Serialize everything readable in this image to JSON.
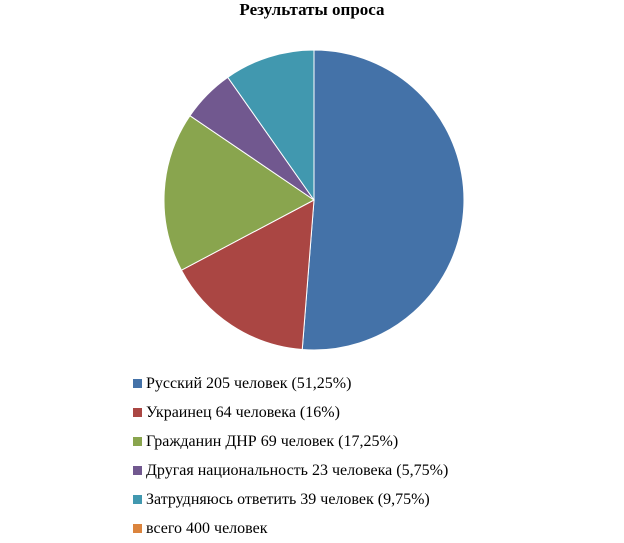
{
  "chart_data": {
    "type": "pie",
    "title": "Результаты опроса",
    "slices": [
      {
        "label": "Русский 205 человек (51,25%)",
        "value": 205,
        "percent": 51.25,
        "color": "#4472a8"
      },
      {
        "label": "Украинец 64 человека (16%)",
        "value": 64,
        "percent": 16,
        "color": "#aa4643"
      },
      {
        "label": "Гражданин ДНР 69 человек (17,25%)",
        "value": 69,
        "percent": 17.25,
        "color": "#89a54e"
      },
      {
        "label": "Другая национальность 23 человека (5,75%)",
        "value": 23,
        "percent": 5.75,
        "color": "#71588f"
      },
      {
        "label": "Затрудняюсь ответить 39 человек (9,75%)",
        "value": 39,
        "percent": 9.75,
        "color": "#4198af"
      },
      {
        "label": "всего 400 человек",
        "value": 400,
        "color": "#db843d",
        "in_pie": false
      }
    ],
    "legend_position": "bottom"
  }
}
